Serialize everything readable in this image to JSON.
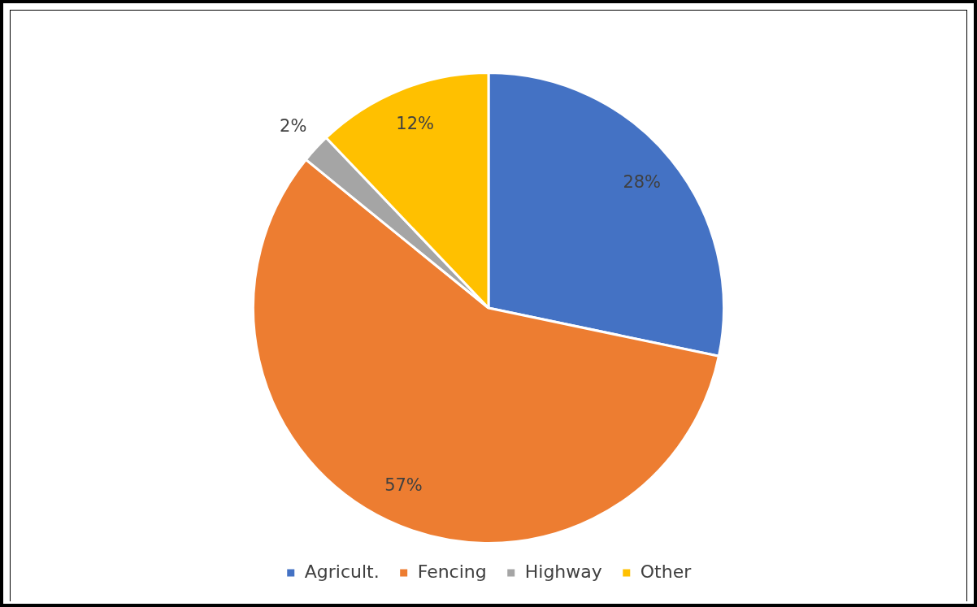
{
  "chart_data": {
    "type": "pie",
    "categories": [
      "Agricult.",
      "Fencing",
      "Highway",
      "Other"
    ],
    "values": [
      28,
      57,
      2,
      12
    ],
    "value_labels": [
      "28%",
      "57%",
      "2%",
      "12%"
    ],
    "colors": [
      "#4472c4",
      "#ed7d31",
      "#a5a5a5",
      "#ffc000"
    ],
    "legend": "bottom"
  }
}
